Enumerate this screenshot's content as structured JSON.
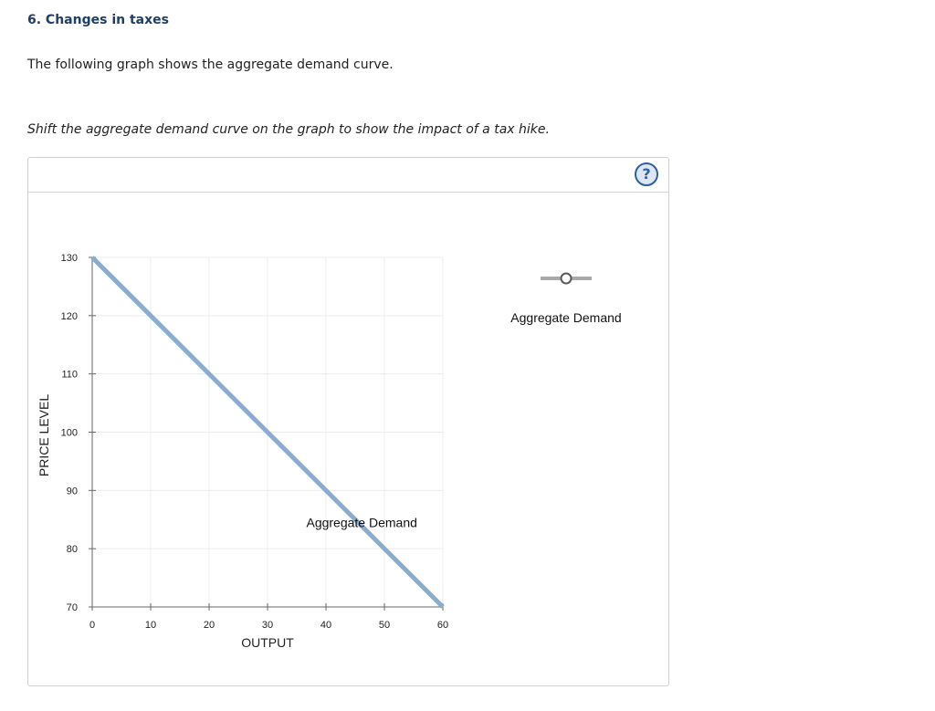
{
  "question": {
    "title": "6. Changes in taxes",
    "text": "The following graph shows the aggregate demand curve.",
    "instruction": "Shift the aggregate demand curve on the graph to show the impact of a tax hike."
  },
  "panel": {
    "help_label": "?"
  },
  "legend": {
    "label": "Aggregate Demand",
    "icon": "line-with-circle-handle-icon"
  },
  "colors": {
    "title": "#1f3f66",
    "curve": "#8aacce",
    "legend_line": "#a9a9a9",
    "help": "#2e5fa0"
  },
  "chart_data": {
    "type": "line",
    "xlabel": "OUTPUT",
    "ylabel": "PRICE LEVEL",
    "xlim": [
      0,
      60
    ],
    "ylim": [
      70,
      130
    ],
    "x_ticks": [
      "0",
      "10",
      "20",
      "30",
      "40",
      "50",
      "60"
    ],
    "y_ticks": [
      "130",
      "120",
      "110",
      "100",
      "90",
      "80",
      "70"
    ],
    "grid": true,
    "series": [
      {
        "name": "Aggregate Demand",
        "points": [
          [
            0,
            130
          ],
          [
            60,
            70
          ]
        ]
      }
    ],
    "annotations": [
      {
        "text": "Aggregate Demand",
        "x": 48,
        "y": 85
      }
    ]
  }
}
